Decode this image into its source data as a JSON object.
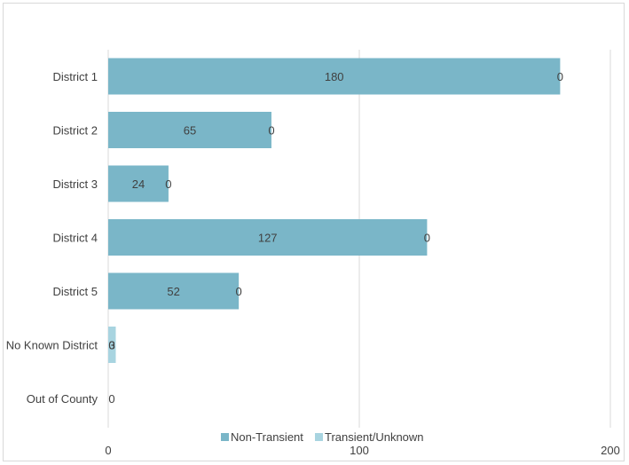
{
  "chart_data": {
    "type": "bar",
    "orientation": "horizontal",
    "stacked": true,
    "categories": [
      "District 1",
      "District 2",
      "District 3",
      "District 4",
      "District 5",
      "No Known District",
      "Out of County"
    ],
    "series": [
      {
        "name": "Non-Transient",
        "color": "#7ab6c8",
        "values": [
          180,
          65,
          24,
          127,
          52,
          0,
          0
        ],
        "labels": [
          "180",
          "65",
          "24",
          "127",
          "52",
          "0",
          "0"
        ]
      },
      {
        "name": "Transient/Unknown",
        "color": "#a8d4e0",
        "values": [
          0,
          0,
          0,
          0,
          0,
          3,
          0
        ],
        "labels": [
          "0",
          "0",
          "0",
          "0",
          "0",
          "3",
          ""
        ]
      }
    ],
    "xlim": [
      0,
      200
    ],
    "xticks": [
      0,
      100,
      200
    ],
    "xtick_labels": [
      "0",
      "100",
      "200"
    ],
    "grid": true,
    "legend_position": "bottom"
  }
}
